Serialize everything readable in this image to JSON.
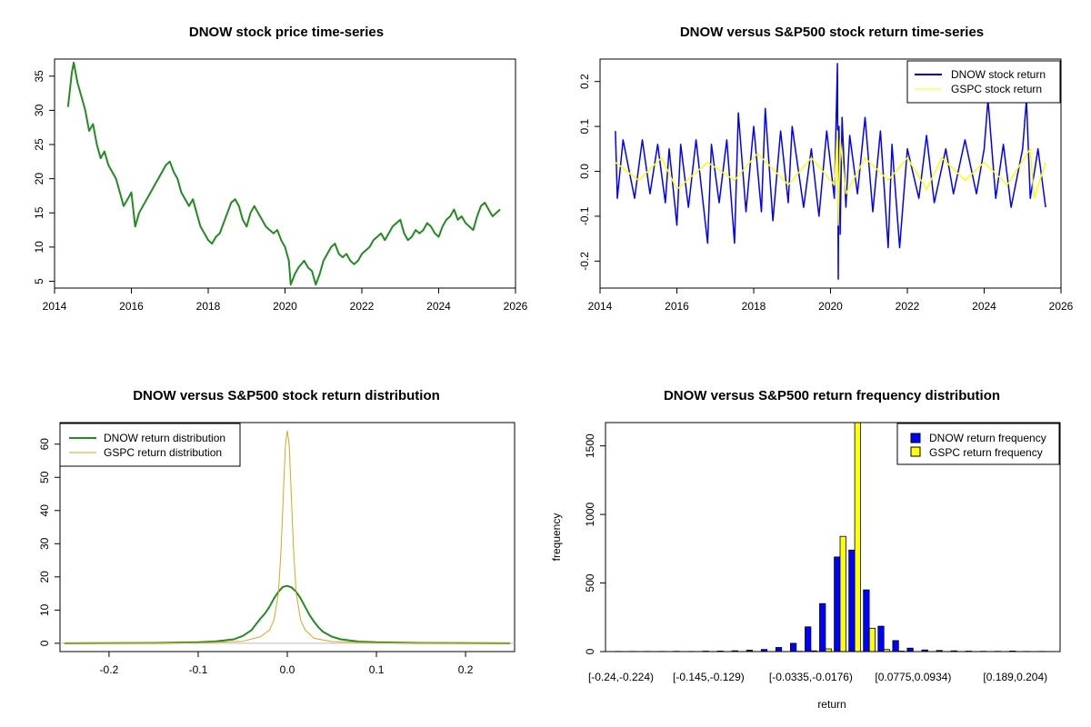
{
  "colors": {
    "price": "#228b22",
    "dnow_return": "#0000ff",
    "gspc_return": "#ffff00",
    "dnow_dist": "#228b22",
    "gspc_dist": "#daa520",
    "dnow_freq": "#0000ff",
    "gspc_freq": "#ffff00"
  },
  "chart_data": [
    {
      "id": "price",
      "type": "line",
      "title": "DNOW stock price time-series",
      "xlabel": "",
      "ylabel": "",
      "xlim": [
        2014,
        2026
      ],
      "ylim": [
        4,
        37.5
      ],
      "x_ticks": [
        2014,
        2016,
        2018,
        2020,
        2022,
        2024,
        2026
      ],
      "y_ticks": [
        5,
        10,
        15,
        20,
        25,
        30,
        35
      ],
      "grid": false,
      "series": [
        {
          "x": [
            2014.35,
            2014.45,
            2014.5,
            2014.6,
            2014.7,
            2014.8,
            2014.9,
            2015.0,
            2015.1,
            2015.2,
            2015.3,
            2015.4,
            2015.5,
            2015.6,
            2015.7,
            2015.8,
            2015.9,
            2016.0,
            2016.1,
            2016.2,
            2016.3,
            2016.4,
            2016.5,
            2016.6,
            2016.7,
            2016.8,
            2016.9,
            2017.0,
            2017.1,
            2017.2,
            2017.3,
            2017.4,
            2017.5,
            2017.6,
            2017.7,
            2017.8,
            2017.9,
            2018.0,
            2018.1,
            2018.2,
            2018.3,
            2018.4,
            2018.5,
            2018.6,
            2018.7,
            2018.8,
            2018.9,
            2019.0,
            2019.1,
            2019.2,
            2019.3,
            2019.4,
            2019.5,
            2019.6,
            2019.7,
            2019.8,
            2019.9,
            2020.0,
            2020.1,
            2020.15,
            2020.25,
            2020.35,
            2020.5,
            2020.6,
            2020.7,
            2020.8,
            2020.9,
            2021.0,
            2021.1,
            2021.2,
            2021.3,
            2021.4,
            2021.5,
            2021.6,
            2021.7,
            2021.8,
            2021.9,
            2022.0,
            2022.1,
            2022.2,
            2022.3,
            2022.4,
            2022.5,
            2022.6,
            2022.7,
            2022.8,
            2022.9,
            2023.0,
            2023.1,
            2023.2,
            2023.3,
            2023.4,
            2023.5,
            2023.6,
            2023.7,
            2023.8,
            2023.9,
            2024.0,
            2024.1,
            2024.2,
            2024.3,
            2024.4,
            2024.5,
            2024.6,
            2024.7,
            2024.8,
            2024.9,
            2025.0,
            2025.1,
            2025.2,
            2025.3,
            2025.4,
            2025.5,
            2025.6
          ],
          "y": [
            30.5,
            35.5,
            37,
            34,
            32,
            30,
            27,
            28,
            25,
            23,
            24,
            22,
            21,
            20,
            18,
            16,
            17,
            18,
            13,
            15,
            16,
            17,
            18,
            19,
            20,
            21,
            22,
            22.5,
            21,
            20,
            18,
            17,
            16,
            17,
            15,
            13,
            12,
            11,
            10.5,
            11.5,
            12,
            13.5,
            15,
            16.5,
            17,
            16,
            14,
            13,
            15,
            16,
            15,
            14,
            13,
            12.5,
            12,
            12.5,
            11,
            10,
            8,
            4.5,
            6,
            7,
            8,
            7,
            6.5,
            4.5,
            6,
            8,
            9,
            10,
            10.5,
            9,
            8.5,
            9,
            8,
            7.5,
            8,
            9,
            9.5,
            10,
            11,
            11.5,
            12,
            11,
            12,
            13,
            13.5,
            14,
            12,
            11,
            11.5,
            12.5,
            12,
            12.5,
            13.5,
            13,
            12,
            11.5,
            13,
            14,
            14.5,
            15.5,
            14,
            14.5,
            13.5,
            13,
            12.5,
            14.5,
            16,
            16.5,
            15.5,
            14.5,
            15,
            15.5
          ]
        }
      ]
    },
    {
      "id": "returns",
      "type": "line",
      "title": "DNOW versus S&P500 stock return time-series",
      "xlabel": "",
      "ylabel": "",
      "xlim": [
        2014,
        2026
      ],
      "ylim": [
        -0.26,
        0.25
      ],
      "x_ticks": [
        2014,
        2016,
        2018,
        2020,
        2022,
        2024,
        2026
      ],
      "y_ticks": [
        -0.2,
        -0.1,
        0.0,
        0.1,
        0.2
      ],
      "grid": false,
      "legend_position": "top-right",
      "series": [
        {
          "name": "DNOW stock return",
          "x": [
            2014.4,
            2014.45,
            2014.6,
            2014.9,
            2015.1,
            2015.3,
            2015.5,
            2015.7,
            2015.8,
            2016.0,
            2016.1,
            2016.3,
            2016.5,
            2016.8,
            2016.9,
            2017.1,
            2017.3,
            2017.5,
            2017.6,
            2017.8,
            2018.0,
            2018.2,
            2018.3,
            2018.5,
            2018.7,
            2018.9,
            2019.0,
            2019.3,
            2019.5,
            2019.7,
            2019.9,
            2020.1,
            2020.18,
            2020.2,
            2020.22,
            2020.25,
            2020.3,
            2020.4,
            2020.5,
            2020.7,
            2020.9,
            2021.1,
            2021.3,
            2021.5,
            2021.6,
            2021.8,
            2022.0,
            2022.3,
            2022.5,
            2022.7,
            2023.0,
            2023.2,
            2023.5,
            2023.8,
            2024.0,
            2024.1,
            2024.3,
            2024.5,
            2024.7,
            2025.0,
            2025.1,
            2025.2,
            2025.4,
            2025.6
          ],
          "y": [
            0.09,
            -0.06,
            0.07,
            -0.06,
            0.07,
            -0.05,
            0.06,
            -0.07,
            0.05,
            -0.12,
            0.06,
            -0.08,
            0.07,
            -0.16,
            0.06,
            -0.07,
            0.07,
            -0.16,
            0.13,
            -0.09,
            0.1,
            -0.09,
            0.14,
            -0.11,
            0.09,
            -0.07,
            0.1,
            -0.08,
            0.05,
            -0.1,
            0.09,
            -0.06,
            0.24,
            -0.24,
            0.1,
            -0.14,
            0.12,
            -0.08,
            0.08,
            -0.05,
            0.12,
            -0.09,
            0.09,
            -0.17,
            0.06,
            -0.17,
            0.05,
            -0.06,
            0.08,
            -0.07,
            0.05,
            -0.05,
            0.07,
            -0.05,
            0.05,
            0.16,
            -0.06,
            0.06,
            -0.08,
            0.05,
            0.16,
            -0.06,
            0.05,
            -0.08
          ]
        },
        {
          "name": "GSPC stock return",
          "x": [
            2014.4,
            2015.0,
            2015.6,
            2016.0,
            2016.8,
            2017.5,
            2018.1,
            2018.9,
            2019.5,
            2020.1,
            2020.18,
            2020.2,
            2020.25,
            2020.4,
            2020.9,
            2021.5,
            2022.0,
            2022.5,
            2022.9,
            2023.5,
            2024.0,
            2024.6,
            2025.2,
            2025.3,
            2025.6
          ],
          "y": [
            0.02,
            -0.02,
            0.03,
            -0.04,
            0.02,
            -0.02,
            0.04,
            -0.03,
            0.03,
            -0.03,
            0.09,
            -0.12,
            0.07,
            -0.05,
            0.03,
            -0.02,
            0.03,
            -0.04,
            0.03,
            -0.02,
            0.02,
            -0.03,
            0.05,
            -0.06,
            0.02
          ]
        }
      ]
    },
    {
      "id": "density",
      "type": "line",
      "title": "DNOW versus S&P500 stock return distribution",
      "xlabel": "",
      "ylabel": "",
      "xlim": [
        -0.255,
        0.255
      ],
      "ylim": [
        -2.5,
        66.5
      ],
      "x_ticks": [
        -0.2,
        -0.1,
        0.0,
        0.1,
        0.2
      ],
      "y_ticks": [
        0,
        10,
        20,
        30,
        40,
        50,
        60
      ],
      "grid": false,
      "legend_position": "top-left",
      "series": [
        {
          "name": "DNOW return distribution",
          "x": [
            -0.25,
            -0.15,
            -0.1,
            -0.08,
            -0.06,
            -0.05,
            -0.04,
            -0.035,
            -0.03,
            -0.025,
            -0.02,
            -0.015,
            -0.01,
            -0.005,
            0.0,
            0.005,
            0.01,
            0.015,
            0.02,
            0.025,
            0.03,
            0.035,
            0.04,
            0.05,
            0.06,
            0.08,
            0.1,
            0.15,
            0.25
          ],
          "y": [
            0,
            0.1,
            0.3,
            0.6,
            1.2,
            2.2,
            4,
            5.8,
            7.5,
            9,
            11,
            13.5,
            15.5,
            17,
            17.3,
            16.8,
            15.5,
            13.5,
            11,
            8.5,
            6.5,
            4.8,
            3.5,
            2,
            1.2,
            0.5,
            0.3,
            0.1,
            0
          ]
        },
        {
          "name": "GSPC return distribution",
          "x": [
            -0.25,
            -0.1,
            -0.05,
            -0.03,
            -0.02,
            -0.015,
            -0.01,
            -0.007,
            -0.004,
            -0.002,
            0.0,
            0.002,
            0.004,
            0.007,
            0.01,
            0.015,
            0.02,
            0.03,
            0.05,
            0.1,
            0.25
          ],
          "y": [
            0,
            0.1,
            0.6,
            2,
            4,
            7,
            15,
            28,
            48,
            60,
            64,
            60,
            48,
            28,
            15,
            7,
            4,
            1.5,
            0.5,
            0.1,
            0
          ]
        }
      ]
    },
    {
      "id": "frequency",
      "type": "bar",
      "title": "DNOW versus S&P500 return frequency distribution",
      "xlabel": "return",
      "ylabel": "frequency",
      "ylim": [
        0,
        1670
      ],
      "y_ticks": [
        0,
        500,
        1000,
        1500
      ],
      "grid": false,
      "legend_position": "top-right",
      "bins": 30,
      "x_tick_labels": [
        {
          "bin": 0,
          "label": "[-0.24,-0.224)"
        },
        {
          "bin": 6,
          "label": "[-0.145,-0.129)"
        },
        {
          "bin": 13,
          "label": "[-0.0335,-0.0176)"
        },
        {
          "bin": 20,
          "label": "[0.0775,0.0934)"
        },
        {
          "bin": 27,
          "label": "[0.189,0.204)"
        }
      ],
      "series": [
        {
          "name": "DNOW return frequency",
          "values": [
            1,
            1,
            1,
            1,
            2,
            1,
            3,
            4,
            6,
            10,
            15,
            30,
            60,
            180,
            350,
            690,
            740,
            450,
            185,
            80,
            25,
            12,
            8,
            5,
            3,
            2,
            2,
            4,
            1,
            1
          ]
        },
        {
          "name": "GSPC return frequency",
          "values": [
            0,
            0,
            0,
            0,
            0,
            0,
            0,
            0,
            0,
            0,
            0,
            0,
            2,
            5,
            20,
            840,
            1670,
            170,
            15,
            3,
            0,
            0,
            0,
            0,
            0,
            0,
            0,
            0,
            0,
            0
          ]
        }
      ]
    }
  ]
}
